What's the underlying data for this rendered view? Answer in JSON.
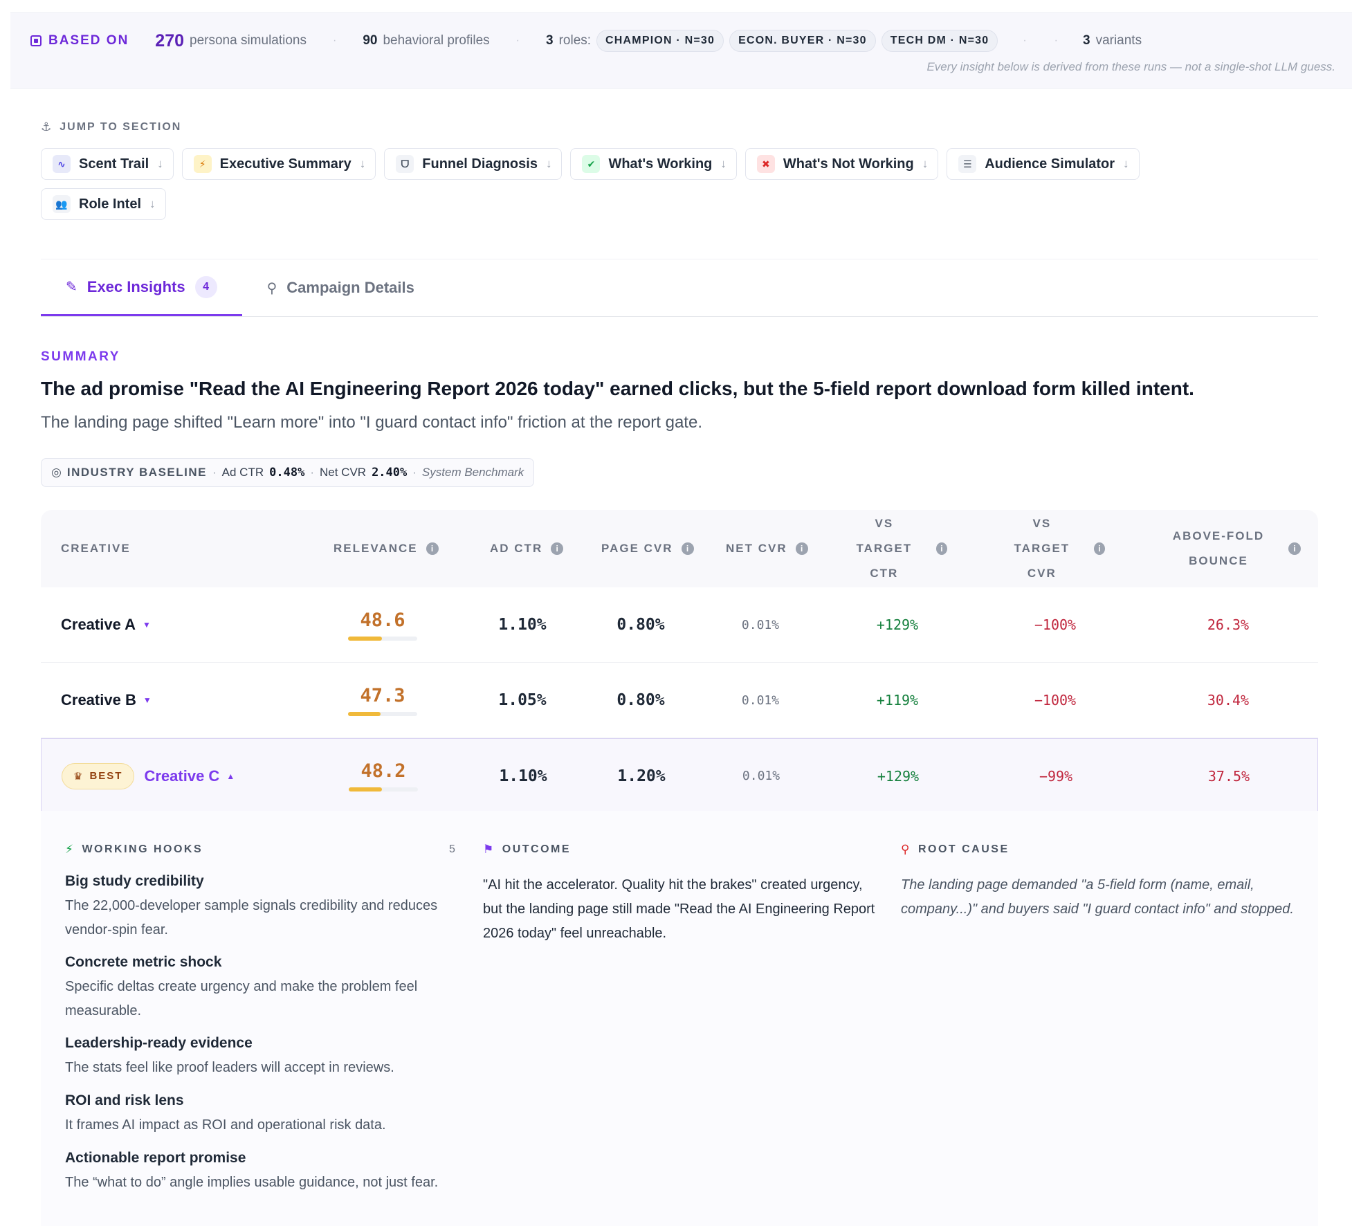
{
  "based_on": {
    "label": "BASED ON",
    "simulations_count": "270",
    "simulations_label": "persona simulations",
    "profiles_count": "90",
    "profiles_label": "behavioral profiles",
    "roles_count": "3",
    "roles_label": "roles:",
    "roles": [
      "CHAMPION · N=30",
      "ECON. BUYER · N=30",
      "TECH DM · N=30"
    ],
    "variants_count": "3",
    "variants_label": "variants",
    "note": "Every insight below is derived from these runs — not a single-shot LLM guess."
  },
  "jump": {
    "label": "JUMP TO SECTION",
    "items": [
      {
        "label": "Scent Trail",
        "icon": "route-icon",
        "bg": "#e7e9f9",
        "fg": "#4f46e5",
        "glyph": "∿"
      },
      {
        "label": "Executive Summary",
        "icon": "bolt-icon",
        "bg": "#fef3c7",
        "fg": "#d97706",
        "glyph": "⚡"
      },
      {
        "label": "Funnel Diagnosis",
        "icon": "stethoscope-icon",
        "bg": "#f1f3f7",
        "fg": "#4b5563",
        "glyph": "ᗜ"
      },
      {
        "label": "What's Working",
        "icon": "check-circle-icon",
        "bg": "#dcfce7",
        "fg": "#16a34a",
        "glyph": "✔"
      },
      {
        "label": "What's Not Working",
        "icon": "x-circle-icon",
        "bg": "#fee2e2",
        "fg": "#dc2626",
        "glyph": "✖"
      },
      {
        "label": "Audience Simulator",
        "icon": "sliders-icon",
        "bg": "#f1f3f7",
        "fg": "#4b5563",
        "glyph": "☰"
      },
      {
        "label": "Role Intel",
        "icon": "users-icon",
        "bg": "#f1f3f7",
        "fg": "#4b5563",
        "glyph": "👥"
      }
    ],
    "arrow": "↓"
  },
  "tabs": [
    {
      "label": "Exec Insights",
      "count": "4",
      "icon": "magic-wand-icon"
    },
    {
      "label": "Campaign Details",
      "icon": "microscope-icon"
    }
  ],
  "summary": {
    "eyebrow": "SUMMARY",
    "headline": "The ad promise \"Read the AI Engineering Report 2026 today\" earned clicks, but the 5-field report download form killed intent.",
    "subline": "The landing page shifted \"Learn more\" into \"I guard contact info\" friction at the report gate."
  },
  "baseline": {
    "label": "INDUSTRY BASELINE",
    "ad_ctr_label": "Ad CTR",
    "ad_ctr": "0.48%",
    "net_cvr_label": "Net CVR",
    "net_cvr": "2.40%",
    "source": "System Benchmark"
  },
  "table": {
    "headers": {
      "creative": "CREATIVE",
      "relevance": "RELEVANCE",
      "ad_ctr": "AD CTR",
      "page_cvr": "PAGE CVR",
      "net_cvr": "NET CVR",
      "vs_target_ctr": "VS TARGET CTR",
      "vs_target_cvr": "VS TARGET CVR",
      "above_fold_bounce": "ABOVE-FOLD BOUNCE"
    },
    "rows": [
      {
        "name": "Creative A",
        "relevance": "48.6",
        "relevance_fraction": 0.486,
        "ad_ctr": "1.10%",
        "page_cvr": "0.80%",
        "net_cvr": "0.01%",
        "vs_ctr": "+129%",
        "vs_cvr": "−100%",
        "bounce": "26.3%",
        "expanded": false
      },
      {
        "name": "Creative B",
        "relevance": "47.3",
        "relevance_fraction": 0.473,
        "ad_ctr": "1.05%",
        "page_cvr": "0.80%",
        "net_cvr": "0.01%",
        "vs_ctr": "+119%",
        "vs_cvr": "−100%",
        "bounce": "30.4%",
        "expanded": false
      },
      {
        "name": "Creative C",
        "badge": "BEST",
        "relevance": "48.2",
        "relevance_fraction": 0.482,
        "ad_ctr": "1.10%",
        "page_cvr": "1.20%",
        "net_cvr": "0.01%",
        "vs_ctr": "+129%",
        "vs_cvr": "−99%",
        "bounce": "37.5%",
        "expanded": true
      }
    ]
  },
  "detail": {
    "hooks_label": "WORKING HOOKS",
    "hooks_count": "5",
    "hooks": [
      {
        "title": "Big study credibility",
        "desc": "The 22,000-developer sample signals credibility and reduces vendor-spin fear."
      },
      {
        "title": "Concrete metric shock",
        "desc": "Specific deltas create urgency and make the problem feel measurable."
      },
      {
        "title": "Leadership-ready evidence",
        "desc": "The stats feel like proof leaders will accept in reviews."
      },
      {
        "title": "ROI and risk lens",
        "desc": "It frames AI impact as ROI and operational risk data."
      },
      {
        "title": "Actionable report promise",
        "desc": "The “what to do” angle implies usable guidance, not just fear."
      }
    ],
    "outcome_label": "OUTCOME",
    "outcome": "\"AI hit the accelerator. Quality hit the brakes\" created urgency, but the landing page still made \"Read the AI Engineering Report 2026 today\" feel unreachable.",
    "root_label": "ROOT CAUSE",
    "root": "The landing page demanded \"a 5-field form (name, email, company...)\" and buyers said \"I guard contact info\" and stopped."
  }
}
